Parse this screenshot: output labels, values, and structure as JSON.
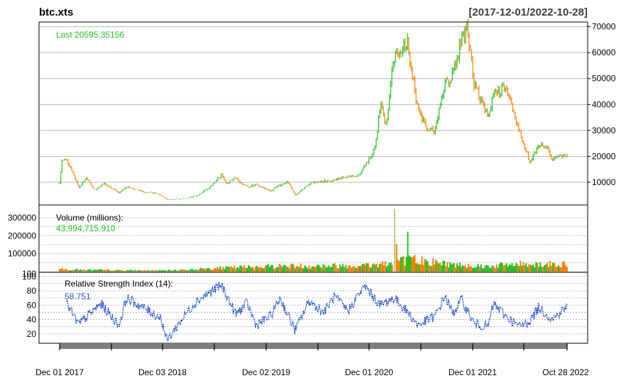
{
  "colors": {
    "up": "#20c020",
    "down": "#ff7f00",
    "rsi": "#0033cc",
    "legend_price": "#20c020",
    "legend_volume": "#20c020",
    "legend_rsi": "#3355cc",
    "axis_strip": "#7f7f7f"
  },
  "chart_data": {
    "type": "line",
    "title": "btc.xts",
    "date_range": "[2017-12-01/2022-10-28]",
    "x_tick_labels": [
      "Dec 01 2017",
      "Dec 03 2018",
      "Dec 02 2019",
      "Dec 01 2020",
      "Dec 01 2021",
      "Oct 28 2022"
    ],
    "price_panel": {
      "legend": "Last 20595.35156",
      "y_tick_labels": [
        "70000",
        "60000",
        "50000",
        "40000",
        "30000",
        "20000",
        "10000"
      ],
      "ylim": [
        0,
        70000
      ],
      "x": [
        "2017-12-01",
        "2017-12-08",
        "2017-12-17",
        "2018-01-06",
        "2018-02-06",
        "2018-03-05",
        "2018-04-06",
        "2018-05-05",
        "2018-06-29",
        "2018-07-25",
        "2018-09-15",
        "2018-11-14",
        "2018-12-15",
        "2019-02-08",
        "2019-04-02",
        "2019-05-14",
        "2019-06-26",
        "2019-07-16",
        "2019-08-10",
        "2019-09-24",
        "2019-10-26",
        "2019-12-17",
        "2020-02-13",
        "2020-03-12",
        "2020-05-08",
        "2020-07-27",
        "2020-09-03",
        "2020-10-21",
        "2020-11-30",
        "2020-12-17",
        "2021-01-08",
        "2021-01-27",
        "2021-02-21",
        "2021-03-13",
        "2021-04-14",
        "2021-05-19",
        "2021-06-22",
        "2021-07-20",
        "2021-08-23",
        "2021-09-07",
        "2021-10-20",
        "2021-11-10",
        "2021-12-04",
        "2022-01-22",
        "2022-02-10",
        "2022-03-28",
        "2022-05-09",
        "2022-06-18",
        "2022-07-20",
        "2022-08-14",
        "2022-09-06",
        "2022-10-28"
      ],
      "close": [
        10000,
        17500,
        19100,
        16900,
        8000,
        11500,
        7000,
        9600,
        5900,
        8200,
        6500,
        5600,
        3300,
        3600,
        4900,
        8000,
        12900,
        9500,
        11800,
        8100,
        9200,
        6700,
        10300,
        5000,
        9800,
        11000,
        11900,
        12800,
        19200,
        23000,
        40500,
        30500,
        57500,
        61000,
        63500,
        37000,
        31700,
        29800,
        49500,
        46800,
        64400,
        68800,
        48000,
        35000,
        44200,
        47000,
        31000,
        18000,
        24000,
        24300,
        18800,
        20595.35
      ]
    },
    "volume_panel": {
      "legend": "Volume (millions):",
      "legend_value": "43,994,715,910",
      "y_tick_labels": [
        "300000",
        "200000",
        "100000",
        "100"
      ],
      "ylim": [
        0,
        350000
      ],
      "x": [
        "2017-12",
        "2018-06",
        "2018-12",
        "2019-06",
        "2019-12",
        "2020-06",
        "2020-12",
        "2021-02",
        "2021-02-26",
        "2021-05",
        "2021-09",
        "2022-01",
        "2022-05",
        "2022-10"
      ],
      "volume": [
        13000,
        8000,
        7000,
        21000,
        33000,
        34000,
        38000,
        60000,
        350000,
        70000,
        42000,
        32000,
        45000,
        44000
      ]
    },
    "rsi_panel": {
      "legend": "Relative Strength Index (14):",
      "legend_value": "58.751",
      "y_tick_labels": [
        "100",
        "80",
        "60",
        "40",
        "20"
      ],
      "ylim": [
        0,
        100
      ],
      "x": [
        "2017-12-01",
        "2017-12-20",
        "2018-02-06",
        "2018-04-25",
        "2018-06-29",
        "2018-07-25",
        "2018-11-24",
        "2018-12-15",
        "2019-02-20",
        "2019-04-02",
        "2019-06-26",
        "2019-08-15",
        "2019-09-24",
        "2019-10-26",
        "2019-12-17",
        "2020-01-18",
        "2020-03-12",
        "2020-04-30",
        "2020-06-20",
        "2020-07-29",
        "2020-09-15",
        "2020-10-25",
        "2020-11-15",
        "2021-01-05",
        "2021-02-25",
        "2021-04-14",
        "2021-05-19",
        "2021-07-20",
        "2021-08-23",
        "2021-09-20",
        "2021-10-20",
        "2021-12-04",
        "2022-01-22",
        "2022-02-10",
        "2022-03-28",
        "2022-05-12",
        "2022-06-18",
        "2022-07-20",
        "2022-09-06",
        "2022-10-28"
      ],
      "values": [
        62,
        66,
        33,
        62,
        32,
        70,
        42,
        11,
        48,
        67,
        88,
        47,
        63,
        32,
        45,
        70,
        25,
        66,
        50,
        72,
        52,
        77,
        86,
        60,
        70,
        50,
        32,
        45,
        73,
        48,
        68,
        34,
        30,
        62,
        44,
        30,
        38,
        57,
        40,
        58.751
      ]
    }
  }
}
